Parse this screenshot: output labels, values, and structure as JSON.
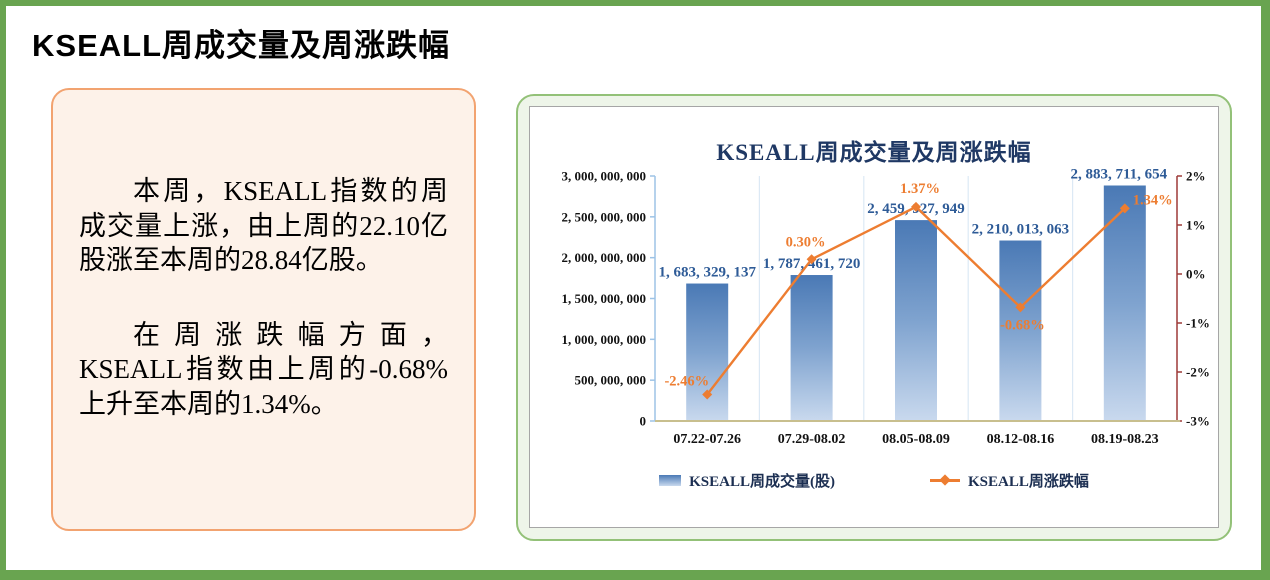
{
  "page": {
    "title": "KSEALL周成交量及周涨跌幅"
  },
  "summary": {
    "paragraph_1": "本周，KSEALL指数的周成交量上涨，由上周的22.10亿股涨至本周的28.84亿股。",
    "paragraph_2": "在周涨跌幅方面，KSEALL指数由上周的-0.68%上升至本周的1.34%。"
  },
  "chart_data": {
    "type": "bar",
    "combo": "bar+line, dual axis",
    "title": "KSEALL周成交量及周涨跌幅",
    "categories": [
      "07.22-07.26",
      "07.29-08.02",
      "08.05-08.09",
      "08.12-08.16",
      "08.19-08.23"
    ],
    "series": [
      {
        "name": "KSEALL周成交量(股)",
        "type": "bar",
        "axis": "left",
        "values": [
          1683329137,
          1787461720,
          2459927949,
          2210013063,
          2883711654
        ],
        "data_labels": [
          "1, 683, 329, 137",
          "1, 787, 461, 720",
          "2, 459, 927, 949",
          "2, 210, 013, 063",
          "2, 883, 711, 654"
        ]
      },
      {
        "name": "KSEALL周涨跌幅",
        "type": "line",
        "axis": "right",
        "values": [
          -2.46,
          0.3,
          1.37,
          -0.68,
          1.34
        ],
        "data_labels": [
          "-2.46%",
          "0.30%",
          "1.37%",
          "-0.68%",
          "1.34%"
        ]
      }
    ],
    "left_axis": {
      "min": 0,
      "max": 3000000000,
      "step": 500000000,
      "tick_labels": [
        "0",
        "500, 000, 000",
        "1, 000, 000, 000",
        "1, 500, 000, 000",
        "2, 000, 000, 000",
        "2, 500, 000, 000",
        "3, 000, 000, 000"
      ]
    },
    "right_axis": {
      "min": -3,
      "max": 2,
      "step": 1,
      "tick_labels": [
        "-3%",
        "-2%",
        "-1%",
        "0%",
        "1%",
        "2%"
      ]
    },
    "legend_position": "bottom",
    "grid": "vertical-category-separators"
  },
  "colors": {
    "page_border": "#69a450",
    "left_panel_border": "#f2a370",
    "left_panel_bg": "#fdf2e9",
    "right_panel_border": "#93c178",
    "right_panel_bg": "#eef5e9",
    "chart_box_border": "#a6a6a6",
    "chart_title_navy": "#1f3864",
    "bar_label_navy": "#2e5b97",
    "line_orange": "#ed7d31",
    "bar_gradient_top": "#4a79b5",
    "bar_gradient_bottom": "#c9d9ee",
    "left_axis_line": "#9dc3e6",
    "right_axis_line": "#9e3a38",
    "x_axis_line": "#c8bf8e",
    "gridline": "#dce9f5"
  }
}
